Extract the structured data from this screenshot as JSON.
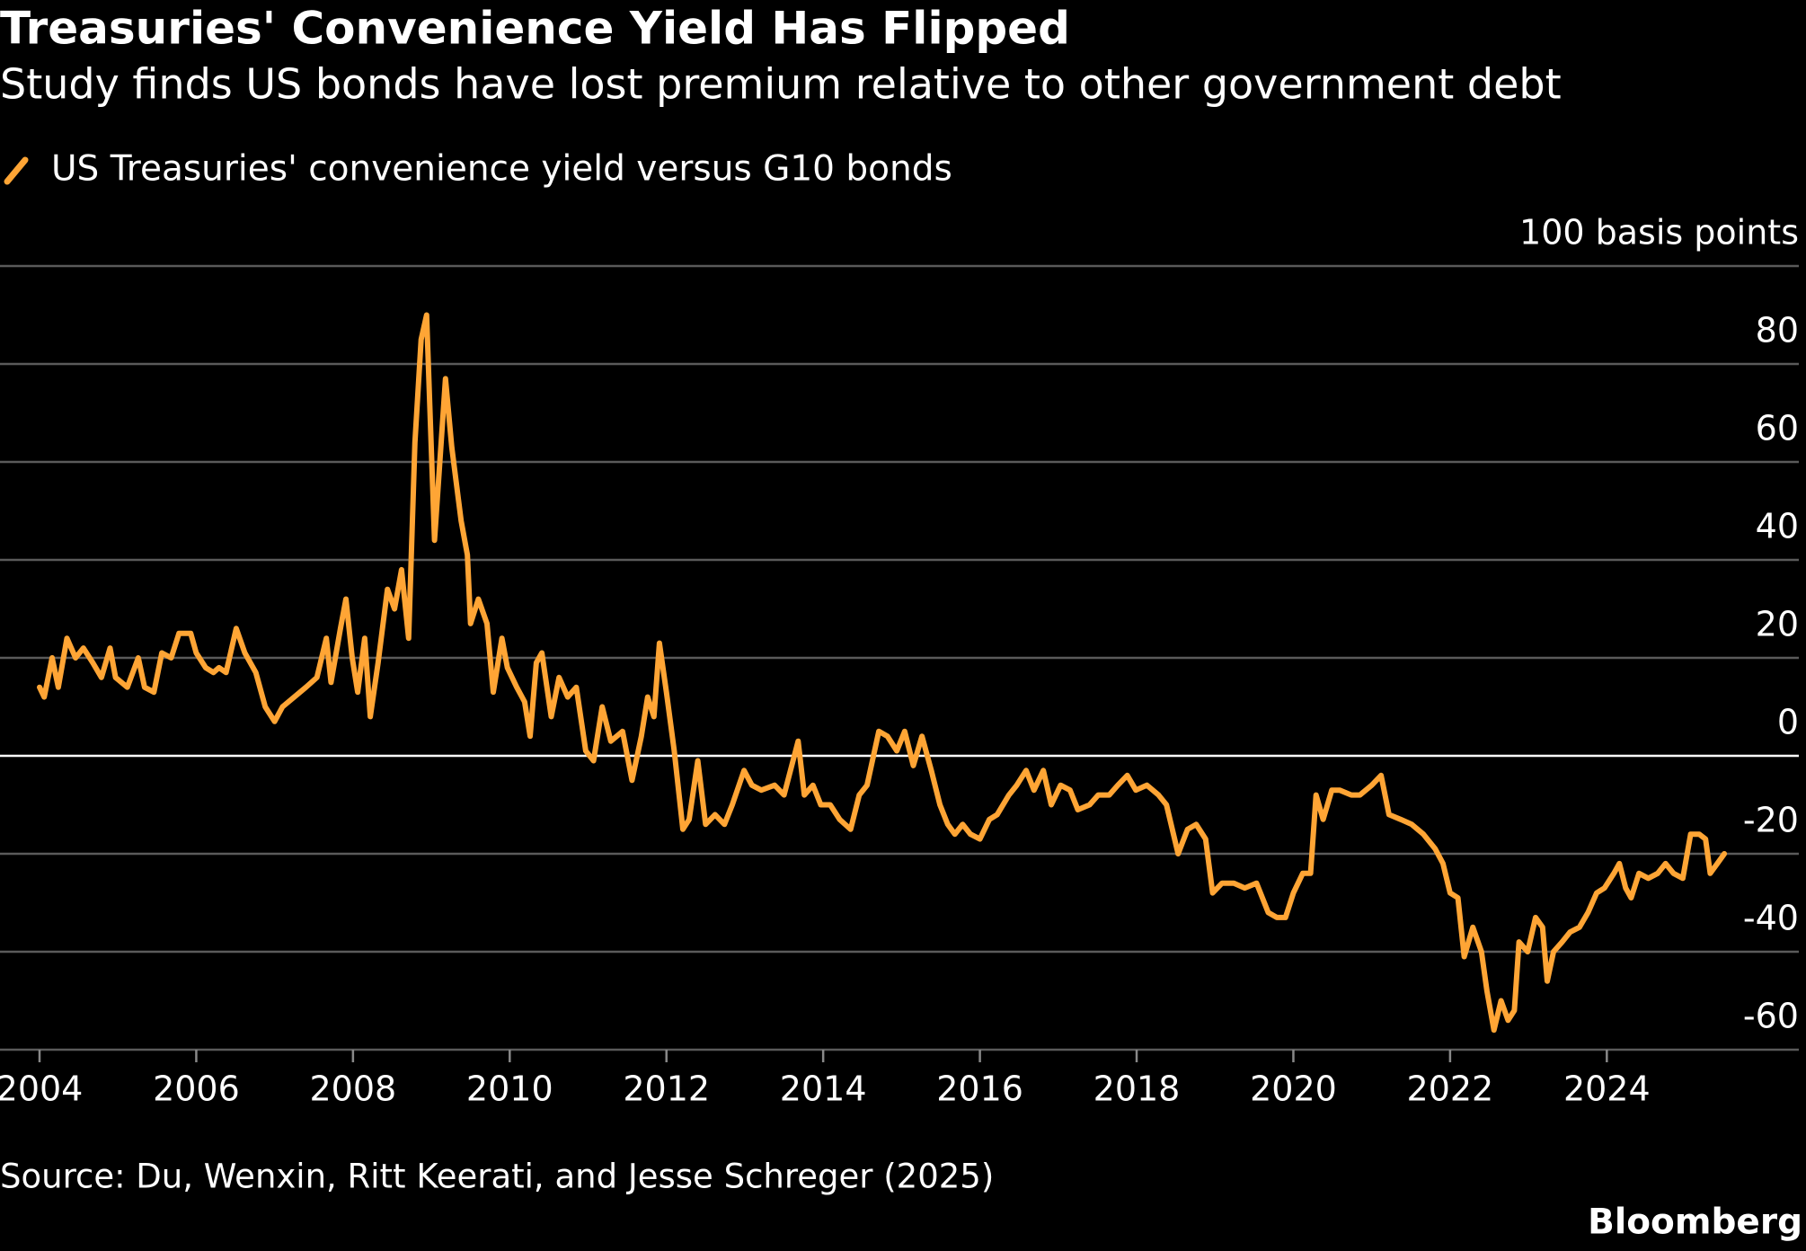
{
  "chart_data": {
    "type": "line",
    "title": "Treasuries' Convenience Yield Has Flipped",
    "subtitle": "Study finds US bonds have lost premium relative to other government debt",
    "source": "Source: Du, Wenxin, Ritt Keerati, and Jesse Schreger (2025)",
    "brand": "Bloomberg",
    "grid": true,
    "xlim": [
      2004,
      2026.45
    ],
    "ylim": [
      -60,
      100
    ],
    "xticks": [
      2004,
      2006,
      2008,
      2010,
      2012,
      2014,
      2016,
      2018,
      2020,
      2022,
      2024
    ],
    "yticks": [
      -60,
      -40,
      -20,
      0,
      20,
      40,
      60,
      80,
      {
        "value": 100,
        "label": "100 basis points"
      }
    ],
    "x": [
      2004.0,
      2004.06,
      2004.16,
      2004.24,
      2004.35,
      2004.46,
      2004.56,
      2004.68,
      2004.79,
      2004.9,
      2004.97,
      2005.12,
      2005.26,
      2005.34,
      2005.46,
      2005.56,
      2005.68,
      2005.78,
      2005.93,
      2006.0,
      2006.12,
      2006.22,
      2006.29,
      2006.38,
      2006.51,
      2006.62,
      2006.76,
      2006.88,
      2007.0,
      2007.1,
      2007.25,
      2007.4,
      2007.54,
      2007.66,
      2007.72,
      2007.84,
      2007.91,
      2007.99,
      2008.06,
      2008.15,
      2008.22,
      2008.32,
      2008.44,
      2008.53,
      2008.62,
      2008.71,
      2008.79,
      2008.87,
      2008.94,
      2009.04,
      2009.18,
      2009.26,
      2009.38,
      2009.46,
      2009.5,
      2009.6,
      2009.71,
      2009.79,
      2009.9,
      2009.97,
      2010.09,
      2010.19,
      2010.26,
      2010.34,
      2010.41,
      2010.53,
      2010.63,
      2010.74,
      2010.85,
      2010.97,
      2011.07,
      2011.18,
      2011.29,
      2011.44,
      2011.56,
      2011.68,
      2011.76,
      2011.84,
      2011.91,
      2012.0,
      2012.1,
      2012.21,
      2012.29,
      2012.4,
      2012.5,
      2012.62,
      2012.74,
      2012.84,
      2012.99,
      2013.09,
      2013.21,
      2013.38,
      2013.5,
      2013.68,
      2013.76,
      2013.87,
      2013.97,
      2014.09,
      2014.21,
      2014.35,
      2014.46,
      2014.56,
      2014.71,
      2014.82,
      2014.94,
      2015.04,
      2015.15,
      2015.26,
      2015.38,
      2015.49,
      2015.59,
      2015.68,
      2015.78,
      2015.88,
      2016.0,
      2016.12,
      2016.22,
      2016.37,
      2016.47,
      2016.59,
      2016.69,
      2016.81,
      2016.91,
      2017.03,
      2017.15,
      2017.25,
      2017.4,
      2017.51,
      2017.65,
      2017.76,
      2017.88,
      2017.99,
      2018.13,
      2018.28,
      2018.38,
      2018.53,
      2018.65,
      2018.76,
      2018.88,
      2018.97,
      2019.09,
      2019.24,
      2019.38,
      2019.53,
      2019.68,
      2019.79,
      2019.9,
      2020.0,
      2020.12,
      2020.22,
      2020.29,
      2020.38,
      2020.49,
      2020.59,
      2020.74,
      2020.85,
      2021.0,
      2021.12,
      2021.22,
      2021.37,
      2021.51,
      2021.66,
      2021.81,
      2021.91,
      2022.0,
      2022.1,
      2022.18,
      2022.29,
      2022.4,
      2022.47,
      2022.56,
      2022.65,
      2022.74,
      2022.82,
      2022.88,
      2022.99,
      2023.09,
      2023.18,
      2023.24,
      2023.32,
      2023.43,
      2023.53,
      2023.65,
      2023.76,
      2023.87,
      2023.97,
      2024.09,
      2024.16,
      2024.24,
      2024.31,
      2024.41,
      2024.53,
      2024.65,
      2024.75,
      2024.85,
      2024.97,
      2025.07,
      2025.18,
      2025.26,
      2025.32,
      2025.41,
      2025.5
    ],
    "series": [
      {
        "name": "US Treasuries' convenience yield versus G10 bonds",
        "color": "#ffa535",
        "values": [
          14,
          12,
          20,
          14,
          24,
          20,
          22,
          19,
          16,
          22,
          16,
          14,
          20,
          14,
          13,
          21,
          20,
          25,
          25,
          21,
          18,
          17,
          18,
          17,
          26,
          21,
          17,
          10,
          7,
          10,
          12,
          14,
          16,
          24,
          15,
          26,
          32,
          20,
          13,
          24,
          8,
          19,
          34,
          30,
          38,
          24,
          64,
          85,
          90,
          44,
          77,
          63,
          48,
          41,
          27,
          32,
          27,
          13,
          24,
          18,
          14,
          11,
          4,
          19,
          21,
          8,
          16,
          12,
          14,
          1,
          -1,
          10,
          3,
          5,
          -5,
          4,
          12,
          8,
          23,
          13,
          1,
          -15,
          -13,
          -1,
          -14,
          -12,
          -14,
          -10,
          -3,
          -6,
          -7,
          -6,
          -8,
          3,
          -8,
          -6,
          -10,
          -10,
          -13,
          -15,
          -8,
          -6,
          5,
          4,
          1,
          5,
          -2,
          4,
          -3,
          -10,
          -14,
          -16,
          -14,
          -16,
          -17,
          -13,
          -12,
          -8,
          -6,
          -3,
          -7,
          -3,
          -10,
          -6,
          -7,
          -11,
          -10,
          -8,
          -8,
          -6,
          -4,
          -7,
          -6,
          -8,
          -10,
          -20,
          -15,
          -14,
          -17,
          -28,
          -26,
          -26,
          -27,
          -26,
          -32,
          -33,
          -33,
          -28,
          -24,
          -24,
          -8,
          -13,
          -7,
          -7,
          -8,
          -8,
          -6,
          -4,
          -12,
          -13,
          -14,
          -16,
          -19,
          -22,
          -28,
          -29,
          -41,
          -35,
          -40,
          -48,
          -56,
          -50,
          -54,
          -52,
          -38,
          -40,
          -33,
          -35,
          -46,
          -40,
          -38,
          -36,
          -35,
          -32,
          -28,
          -27,
          -24,
          -22,
          -27,
          -29,
          -24,
          -25,
          -24,
          -22,
          -24,
          -25,
          -16,
          -16,
          -17,
          -24,
          -22,
          -20
        ]
      }
    ]
  }
}
